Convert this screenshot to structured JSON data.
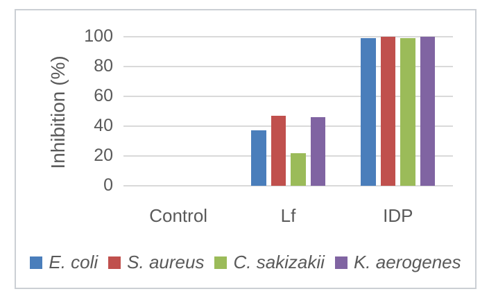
{
  "chart_data": {
    "type": "bar",
    "title": "",
    "xlabel": "",
    "ylabel": "Inhibition (%)",
    "categories": [
      "Control",
      "Lf",
      "IDP"
    ],
    "series": [
      {
        "name": "E. coli",
        "color": "#4A7EBB",
        "values": [
          0,
          37,
          99
        ]
      },
      {
        "name": "S. aureus",
        "color": "#C0504D",
        "values": [
          0,
          47,
          100
        ]
      },
      {
        "name": "C. sakizakii",
        "color": "#9BBB59",
        "values": [
          0,
          22,
          99
        ]
      },
      {
        "name": "K. aerogenes",
        "color": "#8064A2",
        "values": [
          0,
          46,
          100
        ]
      }
    ],
    "ylim": [
      0,
      100
    ],
    "yticks": [
      0,
      20,
      40,
      60,
      80,
      100
    ],
    "grid": true,
    "legend_position": "bottom",
    "legend_style": "italic"
  },
  "colors": {
    "axis_text": "#595959",
    "gridline": "#d9d9d9",
    "figure_border": "#cbcfd4",
    "background": "#ffffff"
  }
}
